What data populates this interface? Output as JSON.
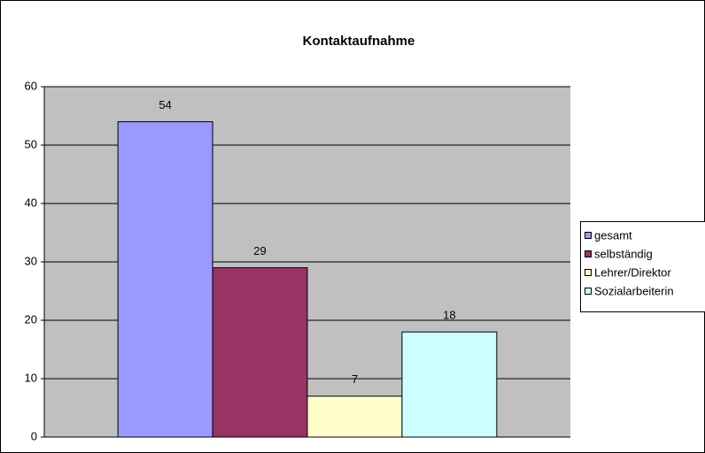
{
  "chart_data": {
    "type": "bar",
    "title": "Kontaktaufnahme",
    "categories": [
      null
    ],
    "series": [
      {
        "name": "gesamt",
        "color": "#9999ff",
        "values": [
          54
        ]
      },
      {
        "name": "selbständig",
        "color": "#993366",
        "values": [
          29
        ]
      },
      {
        "name": "Lehrer/Direktor",
        "color": "#ffffcc",
        "values": [
          7
        ]
      },
      {
        "name": "Sozialarbeiterin",
        "color": "#ccffff",
        "values": [
          18
        ]
      }
    ],
    "ylim": [
      0,
      60
    ],
    "yticks": [
      0,
      10,
      20,
      30,
      40,
      50,
      60
    ],
    "grid": true,
    "legend": "right"
  }
}
